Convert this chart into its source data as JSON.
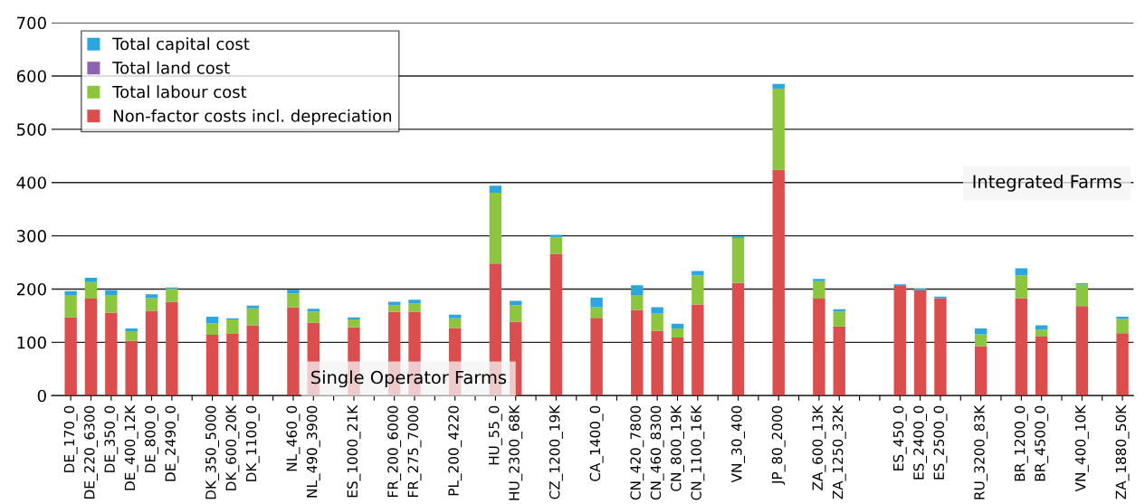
{
  "chart_data": {
    "type": "bar",
    "stacked": true,
    "categories": [
      "DE_170_0",
      "DE_220_6300",
      "DE_350_0",
      "DE_400_12K",
      "DE_800_0",
      "DE_2490_0",
      null,
      "DK_350_5000",
      "DK_600_20K",
      "DK_1100_0",
      null,
      "NL_460_0",
      "NL_490_3900",
      null,
      "ES_1000_21K",
      null,
      "FR_200_6000",
      "FR_275_7000",
      null,
      "PL_200_4220",
      null,
      "HU_55_0",
      "HU_2300_68K",
      null,
      "CZ_1200_19K",
      null,
      "CA_1400_0",
      null,
      "CN_420_7800",
      "CN_460_8300",
      "CN_800_19K",
      "CN_1100_16K",
      null,
      "VN_30_400",
      null,
      "JP_80_2000",
      null,
      "ZA_600_13K",
      "ZA_1250_32K",
      null,
      null,
      "ES_450_0",
      "ES_2400_0",
      "ES_2500_0",
      null,
      "RU_3200_83K",
      null,
      "BR_1200_0",
      "BR_4500_0",
      null,
      "VN_400_10K",
      null,
      "ZA_1880_50K"
    ],
    "series": [
      {
        "name": "Non-factor costs incl. depreciation",
        "color": "#dc4e4e",
        "values": [
          147,
          182,
          156,
          103,
          159,
          176,
          null,
          114,
          116,
          132,
          null,
          166,
          137,
          null,
          128,
          null,
          157,
          157,
          null,
          127,
          null,
          248,
          139,
          null,
          266,
          null,
          146,
          null,
          161,
          122,
          109,
          171,
          null,
          212,
          null,
          424,
          null,
          182,
          130,
          null,
          null,
          206,
          198,
          183,
          null,
          93,
          null,
          183,
          111,
          null,
          168,
          null,
          117
        ]
      },
      {
        "name": "Total labour cost",
        "color": "#8cc63f",
        "values": [
          42,
          31,
          33,
          18,
          24,
          25,
          null,
          22,
          27,
          32,
          null,
          26,
          21,
          null,
          15,
          null,
          13,
          16,
          null,
          18,
          null,
          133,
          31,
          null,
          31,
          null,
          20,
          null,
          28,
          32,
          17,
          55,
          null,
          84,
          null,
          152,
          null,
          33,
          28,
          null,
          null,
          0,
          0,
          0,
          null,
          22,
          null,
          43,
          13,
          null,
          41,
          null,
          27
        ]
      },
      {
        "name": "Total land cost",
        "color": "#8e62b0",
        "values": [
          0,
          0,
          0,
          0,
          0,
          0,
          null,
          0,
          0,
          0,
          null,
          0,
          0,
          null,
          0,
          null,
          0,
          0,
          null,
          0,
          null,
          0,
          0,
          null,
          0,
          null,
          0,
          null,
          0,
          0,
          0,
          0,
          null,
          0,
          null,
          0,
          null,
          0,
          0,
          null,
          null,
          0,
          0,
          0,
          null,
          0,
          null,
          0,
          0,
          null,
          0,
          null,
          0
        ]
      },
      {
        "name": "Total capital cost",
        "color": "#2aa6e0",
        "values": [
          7,
          8,
          9,
          5,
          7,
          2,
          null,
          12,
          2,
          5,
          null,
          7,
          5,
          null,
          4,
          null,
          6,
          7,
          null,
          7,
          null,
          13,
          8,
          null,
          5,
          null,
          18,
          null,
          18,
          12,
          9,
          8,
          null,
          3,
          null,
          9,
          null,
          4,
          4,
          null,
          null,
          3,
          3,
          3,
          null,
          11,
          null,
          13,
          8,
          null,
          2,
          null,
          4
        ]
      }
    ],
    "ylim": [
      0,
      700
    ],
    "yticks": [
      0,
      100,
      200,
      300,
      400,
      500,
      600,
      700
    ],
    "grid": "y",
    "legend": "top left",
    "annotations": [
      "Single Operator Farms",
      "Integrated Farms"
    ]
  }
}
